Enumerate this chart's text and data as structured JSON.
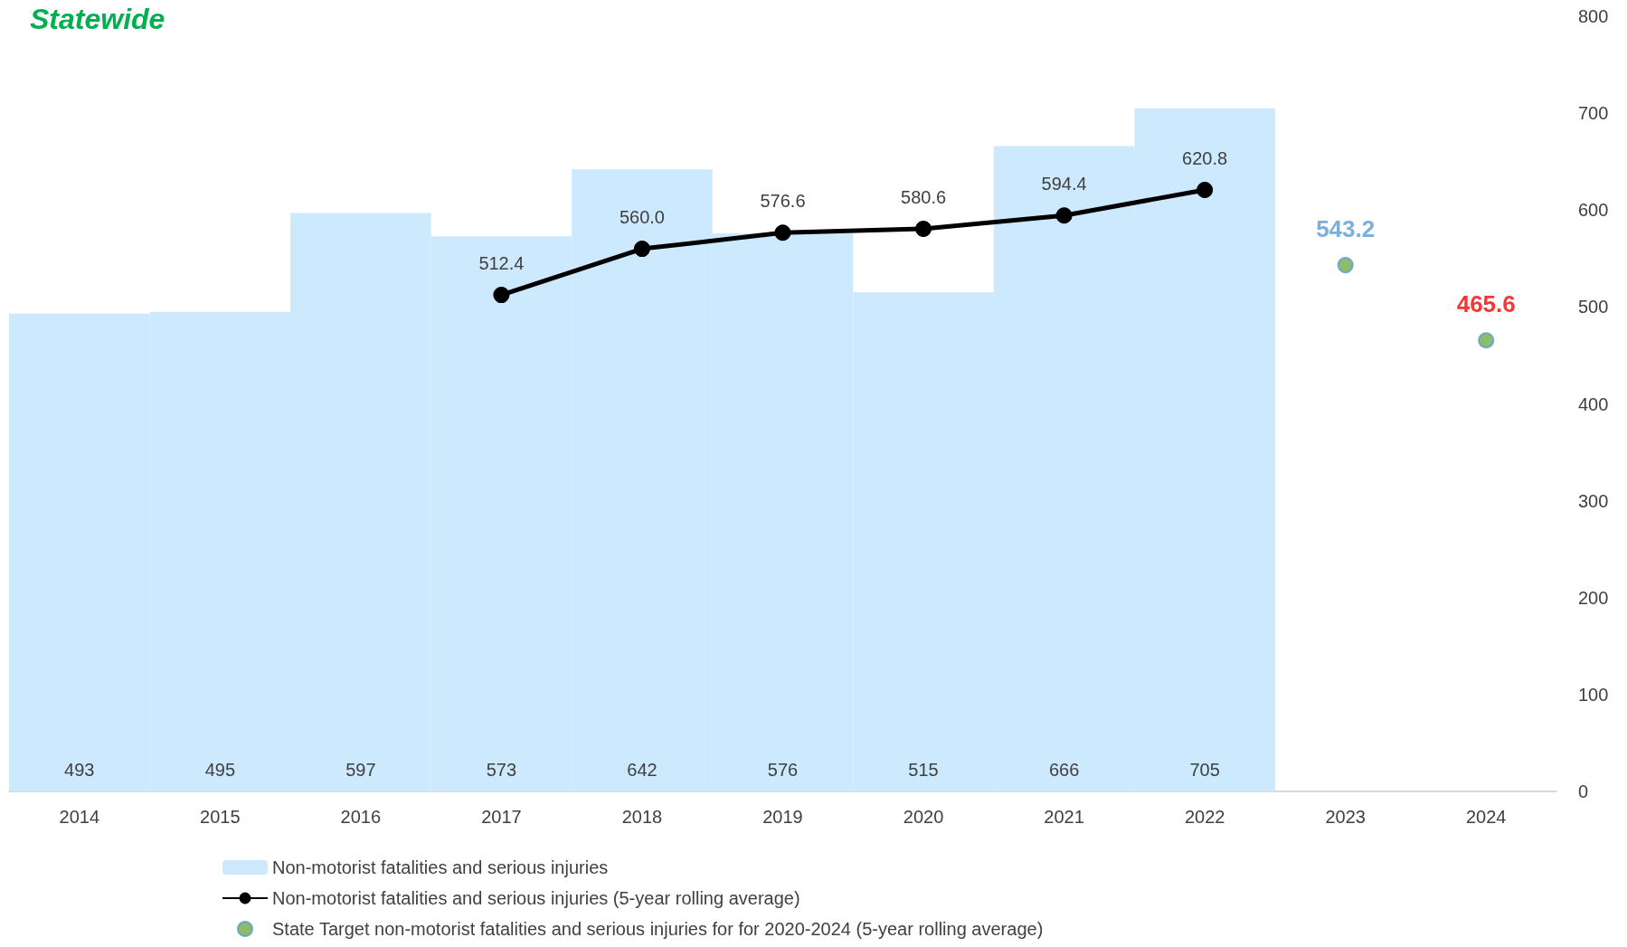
{
  "chart_data": {
    "type": "bar",
    "title": "Statewide",
    "categories": [
      "2014",
      "2015",
      "2016",
      "2017",
      "2018",
      "2019",
      "2020",
      "2021",
      "2022",
      "2023",
      "2024"
    ],
    "series": [
      {
        "name": "Non-motorist fatalities and serious injuries",
        "color": "#cce9fd",
        "values": [
          493,
          495,
          597,
          573,
          642,
          576,
          515,
          666,
          705,
          null,
          null
        ],
        "data_labels": true
      },
      {
        "name": "Non-motorist fatalities and serious injuries (5-year rolling average)",
        "type": "line",
        "color": "#000000",
        "marker": "circle",
        "values": [
          null,
          null,
          null,
          512.4,
          560.0,
          576.6,
          580.6,
          594.4,
          620.8,
          null,
          null
        ],
        "value_labels": [
          null,
          null,
          null,
          "512.4",
          "560.0",
          "576.6",
          "580.6",
          "594.4",
          "620.8",
          null,
          null
        ]
      },
      {
        "name": "State Target non-motorist fatalities and serious injuries for for 2020-2024 (5-year rolling average)",
        "type": "scatter",
        "color": "#70ad47",
        "marker": "circle",
        "values": [
          null,
          null,
          null,
          null,
          null,
          null,
          null,
          null,
          null,
          543.2,
          465.6
        ],
        "value_labels": [
          null,
          null,
          null,
          null,
          null,
          null,
          null,
          null,
          null,
          "543.2",
          "465.6"
        ]
      }
    ],
    "ylim": [
      0,
      800
    ],
    "yticks": [
      0,
      100,
      200,
      300,
      400,
      500,
      600,
      700,
      800
    ],
    "grid": false,
    "legend": "bottom"
  }
}
